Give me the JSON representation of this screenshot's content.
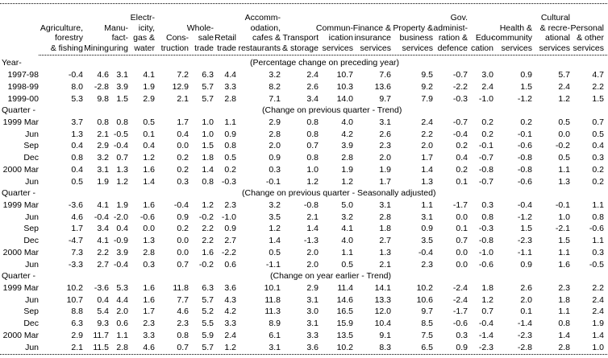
{
  "colors": {
    "background": "#ffffff",
    "text": "#000000"
  },
  "table": {
    "columns": [
      {
        "id": "agriculture-forestry-fishing",
        "lines": [
          "Agriculture,",
          "forestry",
          "& fishing"
        ]
      },
      {
        "id": "mining",
        "lines": [
          "Mining"
        ]
      },
      {
        "id": "manufacturing",
        "lines": [
          "Manu-",
          "fact-",
          "uring"
        ]
      },
      {
        "id": "electricity-gas-water",
        "lines": [
          "Electr-",
          "icity,",
          "gas &",
          "water"
        ]
      },
      {
        "id": "construction",
        "lines": [
          "Cons-",
          "truction"
        ]
      },
      {
        "id": "wholesale-trade",
        "lines": [
          "Whole-",
          "sale",
          "trade"
        ]
      },
      {
        "id": "retail-trade",
        "lines": [
          "Retail",
          "trade"
        ]
      },
      {
        "id": "accommodation-cafes-restaurants",
        "lines": [
          "Accomm-",
          "odation,",
          "cafes &",
          "restaurants"
        ]
      },
      {
        "id": "transport-storage",
        "lines": [
          "Transport",
          "& storage"
        ]
      },
      {
        "id": "communication-services",
        "lines": [
          "Commun-",
          "ication",
          "services"
        ]
      },
      {
        "id": "finance-insurance-services",
        "lines": [
          "Finance &",
          "insurance",
          "services"
        ]
      },
      {
        "id": "property-business-services",
        "lines": [
          "Property &",
          "business",
          "services"
        ]
      },
      {
        "id": "gov-administration-defence",
        "lines": [
          "Gov.",
          "administ-",
          "ration &",
          "defence"
        ]
      },
      {
        "id": "education",
        "lines": [
          "Edu-",
          "cation"
        ]
      },
      {
        "id": "health-community-services",
        "lines": [
          "Health &",
          "community",
          "services"
        ]
      },
      {
        "id": "cultural-recreational-services",
        "lines": [
          "Cultural",
          "& recre-",
          "ational",
          "services"
        ]
      },
      {
        "id": "personal-other-services",
        "lines": [
          "Personal",
          "& other",
          "services"
        ]
      }
    ],
    "sections": [
      {
        "label": "Year-",
        "note": "(Percentage change on preceding year)",
        "rows": [
          {
            "label": "1997-98",
            "values": [
              "-0.4",
              "4.6",
              "3.1",
              "4.1",
              "7.2",
              "6.3",
              "4.4",
              "3.2",
              "2.4",
              "10.7",
              "7.6",
              "9.5",
              "-0.7",
              "3.0",
              "0.9",
              "5.7",
              "4.7"
            ]
          },
          {
            "label": "1998-99",
            "values": [
              "8.0",
              "-2.8",
              "3.9",
              "1.9",
              "12.9",
              "5.7",
              "3.3",
              "8.2",
              "2.6",
              "10.3",
              "13.6",
              "9.2",
              "-2.2",
              "2.4",
              "1.5",
              "2.4",
              "2.2"
            ]
          },
          {
            "label": "1999-00",
            "values": [
              "5.3",
              "9.8",
              "1.5",
              "2.9",
              "2.1",
              "5.7",
              "2.8",
              "7.1",
              "3.4",
              "14.0",
              "9.7",
              "7.9",
              "-0.3",
              "-1.0",
              "-1.2",
              "1.2",
              "1.5"
            ]
          }
        ]
      },
      {
        "label": "Quarter -",
        "note": "(Change on previous quarter - Trend)",
        "rows": [
          {
            "label": "1999 Mar",
            "values": [
              "3.7",
              "0.8",
              "0.8",
              "0.5",
              "1.7",
              "1.0",
              "1.1",
              "2.9",
              "0.8",
              "4.0",
              "3.1",
              "2.4",
              "-0.7",
              "0.2",
              "0.2",
              "0.5",
              "0.7"
            ]
          },
          {
            "label": "Jun",
            "values": [
              "1.3",
              "2.1",
              "-0.5",
              "0.1",
              "0.4",
              "1.0",
              "0.9",
              "2.8",
              "0.8",
              "4.2",
              "2.6",
              "2.2",
              "-0.4",
              "0.2",
              "-0.1",
              "0.0",
              "0.5"
            ]
          },
          {
            "label": "Sep",
            "values": [
              "0.4",
              "2.9",
              "-0.4",
              "0.4",
              "0.0",
              "1.5",
              "0.8",
              "2.0",
              "0.7",
              "3.9",
              "2.3",
              "2.0",
              "0.2",
              "-0.1",
              "-0.6",
              "-0.2",
              "0.4"
            ]
          },
          {
            "label": "Dec",
            "values": [
              "0.8",
              "3.2",
              "0.7",
              "1.2",
              "0.2",
              "1.8",
              "0.5",
              "0.9",
              "0.8",
              "2.8",
              "2.0",
              "1.7",
              "0.4",
              "-0.7",
              "-0.8",
              "0.5",
              "0.3"
            ]
          },
          {
            "label": "2000 Mar",
            "values": [
              "0.4",
              "3.1",
              "1.3",
              "1.6",
              "0.2",
              "1.4",
              "0.2",
              "0.3",
              "1.0",
              "1.9",
              "1.9",
              "1.4",
              "0.2",
              "-0.8",
              "-0.8",
              "1.1",
              "0.2"
            ]
          },
          {
            "label": "Jun",
            "values": [
              "0.5",
              "1.9",
              "1.2",
              "1.4",
              "0.3",
              "0.8",
              "-0.3",
              "-0.1",
              "1.2",
              "1.2",
              "1.7",
              "1.3",
              "0.1",
              "-0.7",
              "-0.6",
              "1.3",
              "0.2"
            ]
          }
        ]
      },
      {
        "label": "Quarter -",
        "note": "(Change on previous quarter - Seasonally adjusted)",
        "rows": [
          {
            "label": "1999 Mar",
            "values": [
              "-3.6",
              "4.1",
              "1.9",
              "1.6",
              "-0.4",
              "1.2",
              "2.3",
              "3.2",
              "-0.8",
              "5.0",
              "3.1",
              "1.1",
              "-1.7",
              "0.3",
              "-0.4",
              "-0.1",
              "1.1"
            ]
          },
          {
            "label": "Jun",
            "values": [
              "4.6",
              "-0.4",
              "-2.0",
              "-0.6",
              "0.9",
              "-0.2",
              "-1.0",
              "3.5",
              "2.1",
              "3.2",
              "2.8",
              "3.1",
              "0.0",
              "0.8",
              "-1.2",
              "1.0",
              "0.8"
            ]
          },
          {
            "label": "Sep",
            "values": [
              "1.7",
              "3.4",
              "0.4",
              "0.0",
              "0.2",
              "2.2",
              "0.9",
              "1.2",
              "1.4",
              "4.1",
              "1.8",
              "0.9",
              "0.1",
              "-0.3",
              "1.5",
              "-2.1",
              "-0.6"
            ]
          },
          {
            "label": "Dec",
            "values": [
              "-4.7",
              "4.1",
              "-0.9",
              "1.3",
              "0.0",
              "2.2",
              "2.7",
              "1.4",
              "-1.3",
              "4.0",
              "2.7",
              "3.5",
              "0.7",
              "-0.8",
              "-2.3",
              "1.5",
              "1.1"
            ]
          },
          {
            "label": "2000 Mar",
            "values": [
              "7.3",
              "2.2",
              "3.9",
              "2.8",
              "0.0",
              "1.6",
              "-2.2",
              "0.5",
              "2.0",
              "1.1",
              "1.3",
              "-0.4",
              "0.0",
              "-1.0",
              "-1.1",
              "1.1",
              "0.3"
            ]
          },
          {
            "label": "Jun",
            "values": [
              "-3.3",
              "2.7",
              "-0.4",
              "0.3",
              "0.7",
              "-0.2",
              "0.6",
              "-1.1",
              "2.0",
              "0.5",
              "2.1",
              "2.3",
              "0.0",
              "-0.6",
              "0.9",
              "1.6",
              "-0.5"
            ]
          }
        ]
      },
      {
        "label": "Quarter -",
        "note": "(Change on year earlier - Trend)",
        "rows": [
          {
            "label": "1999 Mar",
            "values": [
              "10.2",
              "-3.6",
              "5.3",
              "1.6",
              "11.8",
              "6.3",
              "3.6",
              "10.1",
              "2.9",
              "11.4",
              "14.1",
              "10.2",
              "-2.4",
              "1.8",
              "2.6",
              "2.3",
              "2.2"
            ]
          },
          {
            "label": "Jun",
            "values": [
              "10.7",
              "0.4",
              "4.4",
              "1.6",
              "7.7",
              "5.7",
              "4.3",
              "11.8",
              "3.1",
              "14.6",
              "13.3",
              "10.6",
              "-2.4",
              "1.2",
              "2.0",
              "1.8",
              "2.4"
            ]
          },
          {
            "label": "Sep",
            "values": [
              "8.8",
              "5.4",
              "2.0",
              "1.7",
              "4.6",
              "5.2",
              "4.2",
              "11.3",
              "3.0",
              "16.5",
              "12.0",
              "9.7",
              "-1.7",
              "0.7",
              "0.1",
              "1.1",
              "2.4"
            ]
          },
          {
            "label": "Dec",
            "values": [
              "6.3",
              "9.3",
              "0.6",
              "2.3",
              "2.3",
              "5.5",
              "3.3",
              "8.9",
              "3.1",
              "15.9",
              "10.4",
              "8.5",
              "-0.6",
              "-0.4",
              "-1.4",
              "0.8",
              "1.9"
            ]
          },
          {
            "label": "2000 Mar",
            "values": [
              "2.9",
              "11.7",
              "1.1",
              "3.3",
              "0.8",
              "5.9",
              "2.4",
              "6.1",
              "3.3",
              "13.5",
              "9.1",
              "7.5",
              "0.3",
              "-1.4",
              "-2.3",
              "1.4",
              "1.4"
            ]
          },
          {
            "label": "Jun",
            "values": [
              "2.1",
              "11.5",
              "2.8",
              "4.6",
              "0.7",
              "5.7",
              "1.2",
              "3.1",
              "3.6",
              "10.2",
              "8.3",
              "6.5",
              "0.9",
              "-2.3",
              "-2.8",
              "2.8",
              "1.0"
            ]
          }
        ]
      }
    ]
  }
}
